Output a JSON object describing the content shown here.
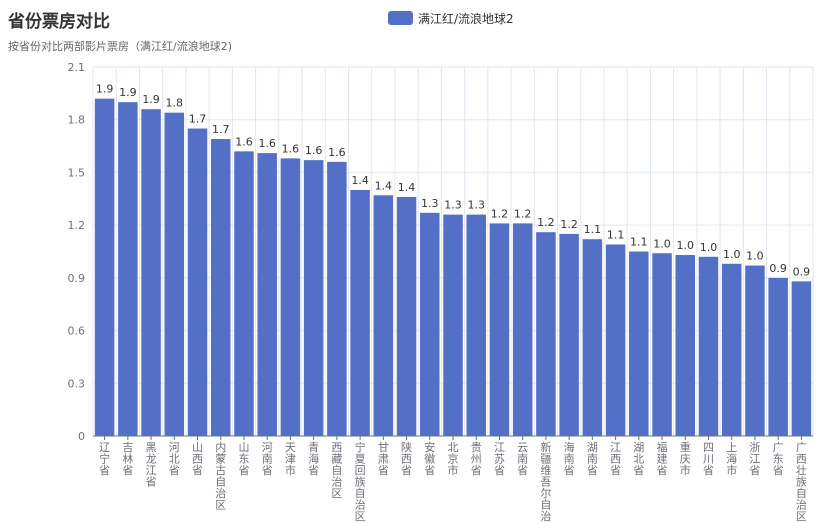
{
  "chart_data": {
    "type": "bar",
    "title": "省份票房对比",
    "subtitle": "按省份对比两部影片票房（满江红/流浪地球2)",
    "xlabel": "",
    "ylabel": "",
    "ylim": [
      0,
      2.1
    ],
    "yticks": [
      "0",
      "0.3",
      "0.6",
      "0.9",
      "1.2",
      "1.5",
      "1.8",
      "2.1"
    ],
    "grid": true,
    "legend_position": "top-center",
    "categories": [
      "辽宁省",
      "吉林省",
      "黑龙江省",
      "河北省",
      "山西省",
      "内蒙古自治区",
      "山东省",
      "河南省",
      "天津市",
      "青海省",
      "西藏自治区",
      "宁夏回族自治区",
      "甘肃省",
      "陕西省",
      "安徽省",
      "北京市",
      "贵州省",
      "江苏省",
      "云南省",
      "新疆维吾尔自治区",
      "海南省",
      "湖南省",
      "江西省",
      "湖北省",
      "福建省",
      "重庆市",
      "四川省",
      "上海市",
      "浙江省",
      "广东省",
      "广西壮族自治区"
    ],
    "series": [
      {
        "name": "满江红/流浪地球2",
        "color": "#5470c6",
        "values": [
          1.92,
          1.9,
          1.86,
          1.84,
          1.75,
          1.69,
          1.62,
          1.61,
          1.58,
          1.57,
          1.56,
          1.4,
          1.37,
          1.36,
          1.27,
          1.26,
          1.26,
          1.21,
          1.21,
          1.16,
          1.15,
          1.12,
          1.09,
          1.05,
          1.04,
          1.03,
          1.02,
          0.98,
          0.97,
          0.9,
          0.88
        ],
        "labels": [
          "1.9",
          "1.9",
          "1.9",
          "1.8",
          "1.7",
          "1.7",
          "1.6",
          "1.6",
          "1.6",
          "1.6",
          "1.6",
          "1.4",
          "1.4",
          "1.4",
          "1.3",
          "1.3",
          "1.3",
          "1.2",
          "1.2",
          "1.2",
          "1.2",
          "1.1",
          "1.1",
          "1.1",
          "1.0",
          "1.0",
          "1.0",
          "1.0",
          "1.0",
          "0.9",
          "0.9"
        ]
      }
    ]
  }
}
